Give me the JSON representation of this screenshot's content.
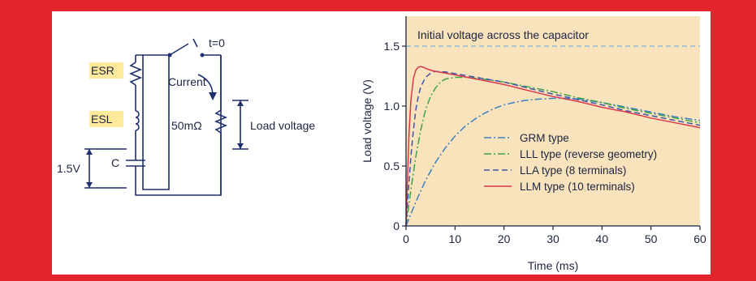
{
  "circuit": {
    "esr_label": "ESR",
    "esl_label": "ESL",
    "c_label": "C",
    "source_voltage_label": "1.5V",
    "switch_label": "t=0",
    "current_label": "Current",
    "load_resistance_label": "50mΩ",
    "load_voltage_label": "Load voltage"
  },
  "chart_data": {
    "type": "line",
    "xlabel": "Time (ms)",
    "ylabel": "Load voltage (V)",
    "xlim": [
      0,
      60
    ],
    "ylim": [
      0,
      1.75
    ],
    "xticks": [
      "0",
      "10",
      "20",
      "30",
      "40",
      "50",
      "60"
    ],
    "yticks": [
      "0",
      "0.5",
      "1.0",
      "1.5"
    ],
    "grid": false,
    "legend": "center",
    "reference_line": {
      "y": 1.5,
      "label": "Initial voltage across the capacitor",
      "color": "#7ab0dc"
    },
    "background_color": "#f9e3bd",
    "series": [
      {
        "name": "GRM type",
        "color": "#3b7fc0",
        "style": "dash-dot",
        "x": [
          0,
          1,
          2,
          4,
          6,
          8,
          10,
          12,
          14,
          16,
          18,
          20,
          22,
          24,
          26,
          28,
          30,
          32,
          35,
          40,
          45,
          50,
          55,
          60
        ],
        "y": [
          0,
          0.1,
          0.2,
          0.38,
          0.53,
          0.65,
          0.75,
          0.83,
          0.89,
          0.94,
          0.98,
          1.01,
          1.03,
          1.045,
          1.055,
          1.06,
          1.065,
          1.065,
          1.06,
          1.03,
          0.99,
          0.95,
          0.91,
          0.88
        ]
      },
      {
        "name": "LLL type (reverse geometry)",
        "color": "#3aa34a",
        "style": "dash-dot",
        "x": [
          0,
          1,
          2,
          3,
          4,
          5,
          6,
          7,
          8,
          10,
          12,
          15,
          20,
          25,
          30,
          35,
          40,
          45,
          50,
          55,
          60
        ],
        "y": [
          0,
          0.3,
          0.58,
          0.8,
          0.97,
          1.08,
          1.15,
          1.2,
          1.225,
          1.24,
          1.24,
          1.23,
          1.2,
          1.16,
          1.12,
          1.07,
          1.03,
          0.98,
          0.94,
          0.9,
          0.86
        ]
      },
      {
        "name": "LLA type (8 terminals)",
        "color": "#3d54a8",
        "style": "dash",
        "x": [
          0,
          0.5,
          1,
          1.5,
          2,
          2.5,
          3,
          4,
          5,
          6,
          8,
          10,
          15,
          20,
          25,
          30,
          35,
          40,
          45,
          50,
          55,
          60
        ],
        "y": [
          0,
          0.3,
          0.58,
          0.8,
          0.97,
          1.08,
          1.16,
          1.24,
          1.275,
          1.29,
          1.285,
          1.27,
          1.235,
          1.2,
          1.15,
          1.1,
          1.055,
          1.01,
          0.96,
          0.92,
          0.88,
          0.84
        ]
      },
      {
        "name": "LLM type (10 terminals)",
        "color": "#d8384a",
        "style": "solid",
        "x": [
          0,
          0.3,
          0.6,
          1,
          1.5,
          2,
          2.5,
          3,
          3.5,
          4,
          5,
          6,
          8,
          10,
          15,
          20,
          25,
          30,
          35,
          40,
          45,
          50,
          55,
          60
        ],
        "y": [
          0,
          0.4,
          0.75,
          1.05,
          1.23,
          1.3,
          1.325,
          1.33,
          1.325,
          1.315,
          1.3,
          1.29,
          1.275,
          1.26,
          1.22,
          1.18,
          1.13,
          1.08,
          1.04,
          0.99,
          0.95,
          0.9,
          0.86,
          0.82
        ]
      }
    ]
  }
}
